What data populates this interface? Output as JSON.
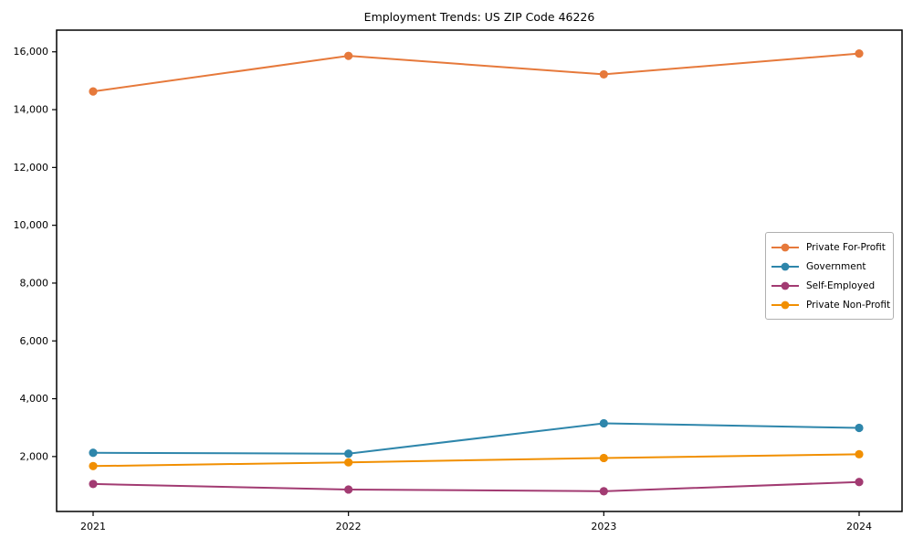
{
  "title": "Employment Trends: US ZIP Code 46226",
  "chart_data": {
    "type": "line",
    "title": "Employment Trends: US ZIP Code 46226",
    "xlabel": "",
    "ylabel": "",
    "categories": [
      "2021",
      "2022",
      "2023",
      "2024"
    ],
    "series": [
      {
        "name": "Private For-Profit",
        "color": "#E6793B",
        "values": [
          14630,
          15860,
          15220,
          15940
        ]
      },
      {
        "name": "Government",
        "color": "#2E86AB",
        "values": [
          2130,
          2100,
          3150,
          2990
        ]
      },
      {
        "name": "Self-Employed",
        "color": "#A23B72",
        "values": [
          1050,
          860,
          800,
          1120
        ]
      },
      {
        "name": "Private Non-Profit",
        "color": "#F18F01",
        "values": [
          1670,
          1800,
          1950,
          2080
        ]
      }
    ],
    "ylim": [
      100,
      16750
    ],
    "yticks": [
      {
        "value": 2000,
        "label": "2,000"
      },
      {
        "value": 4000,
        "label": "4,000"
      },
      {
        "value": 6000,
        "label": "6,000"
      },
      {
        "value": 8000,
        "label": "8,000"
      },
      {
        "value": 10000,
        "label": "10,000"
      },
      {
        "value": 12000,
        "label": "12,000"
      },
      {
        "value": 14000,
        "label": "14,000"
      },
      {
        "value": 16000,
        "label": "16,000"
      }
    ],
    "grid": false,
    "legend_position": "center right",
    "marker": "circle",
    "axis_color": "#000000"
  }
}
